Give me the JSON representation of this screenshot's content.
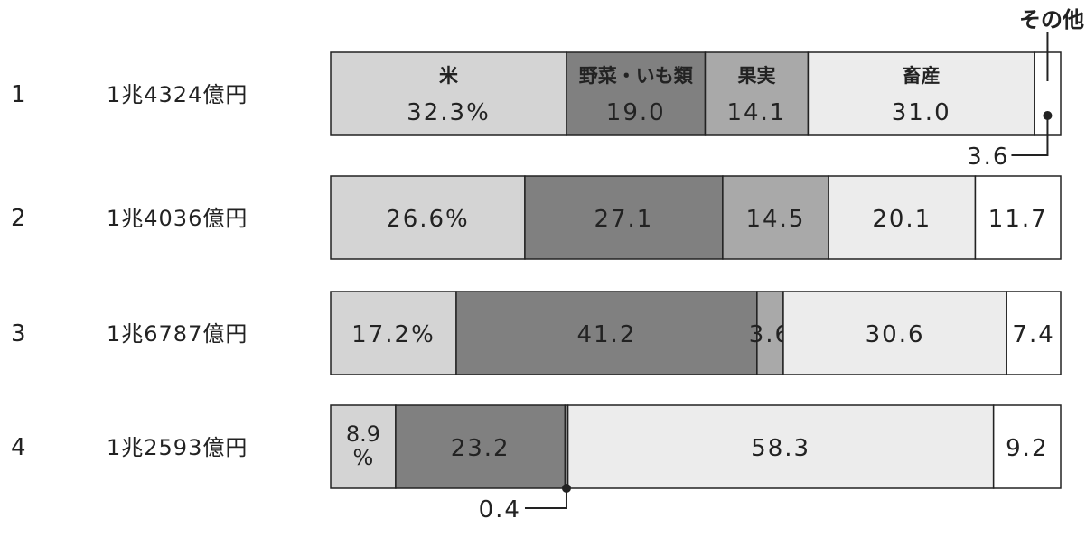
{
  "chart_data": {
    "type": "bar",
    "orientation": "horizontal",
    "stacked": true,
    "percent_of_total": true,
    "categories": [
      "米",
      "野菜・いも類",
      "果実",
      "畜産",
      "その他"
    ],
    "category_labels": {
      "rice": "米",
      "vegetables": "野菜・いも類",
      "fruit": "果実",
      "livestock": "畜産",
      "other": "その他"
    },
    "colors": [
      "#d4d4d4",
      "#808080",
      "#a9a9a9",
      "#ececec",
      "#ffffff"
    ],
    "rows": [
      {
        "label": "1",
        "total": "1兆4324億円",
        "values": [
          32.3,
          19.0,
          14.1,
          31.0,
          3.6
        ],
        "value_labels": [
          "32.3%",
          "19.0",
          "14.1",
          "31.0",
          "3.6"
        ]
      },
      {
        "label": "2",
        "total": "1兆4036億円",
        "values": [
          26.6,
          27.1,
          14.5,
          20.1,
          11.7
        ],
        "value_labels": [
          "26.6%",
          "27.1",
          "14.5",
          "20.1",
          "11.7"
        ]
      },
      {
        "label": "3",
        "total": "1兆6787億円",
        "values": [
          17.2,
          41.2,
          3.6,
          30.6,
          7.4
        ],
        "value_labels": [
          "17.2%",
          "41.2",
          "3.6",
          "30.6",
          "7.4"
        ]
      },
      {
        "label": "4",
        "total": "1兆2593億円",
        "values": [
          8.9,
          23.2,
          0.4,
          58.3,
          9.2
        ],
        "value_labels": [
          "8.9\n%",
          "23.2",
          "0.4",
          "58.3",
          "9.2"
        ]
      }
    ]
  }
}
